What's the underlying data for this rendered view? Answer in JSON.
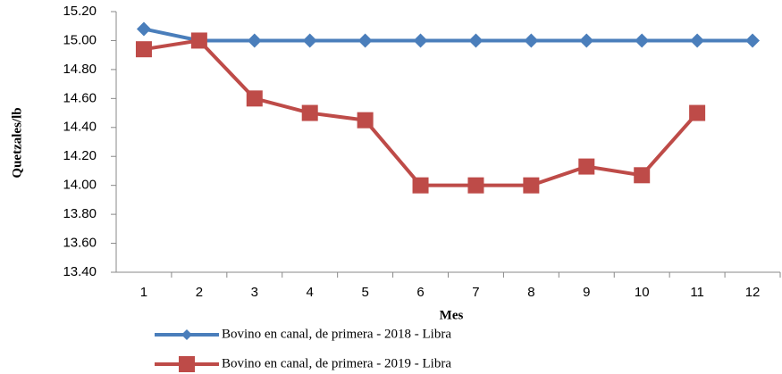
{
  "chart_data": {
    "type": "line",
    "y_label": "Quetzales/lb",
    "x_label": "Mes",
    "categories": [
      1,
      2,
      3,
      4,
      5,
      6,
      7,
      8,
      9,
      10,
      11,
      12
    ],
    "series": [
      {
        "name": "Bovino en canal, de primera - 2018 - Libra",
        "color": "#4a7ebb",
        "marker": "diamond",
        "values": [
          15.08,
          15.0,
          15.0,
          15.0,
          15.0,
          15.0,
          15.0,
          15.0,
          15.0,
          15.0,
          15.0,
          15.0
        ]
      },
      {
        "name": "Bovino en canal, de primera - 2019 - Libra",
        "color": "#be4b48",
        "marker": "square",
        "values": [
          14.94,
          15.0,
          14.6,
          14.5,
          14.45,
          14.0,
          14.0,
          14.0,
          14.13,
          14.07,
          14.5,
          null
        ]
      }
    ],
    "ylim": [
      13.4,
      15.2
    ],
    "yticks": [
      {
        "value": 13.4,
        "label": "13.40"
      },
      {
        "value": 13.6,
        "label": "13.60"
      },
      {
        "value": 13.8,
        "label": "13.80"
      },
      {
        "value": 14.0,
        "label": "14.00"
      },
      {
        "value": 14.2,
        "label": "14.20"
      },
      {
        "value": 14.4,
        "label": "14.40"
      },
      {
        "value": 14.6,
        "label": "14.60"
      },
      {
        "value": 14.8,
        "label": "14.80"
      },
      {
        "value": 15.0,
        "label": "15.00"
      },
      {
        "value": 15.2,
        "label": "15.20"
      }
    ],
    "grid": false
  }
}
